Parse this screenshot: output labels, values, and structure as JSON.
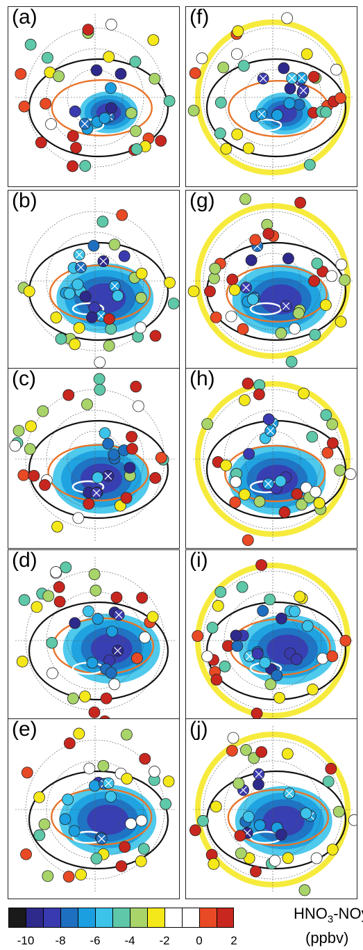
{
  "panels": [
    {
      "label": "(a)"
    },
    {
      "label": "(f)"
    },
    {
      "label": "(b)"
    },
    {
      "label": "(g)"
    },
    {
      "label": "(c)"
    },
    {
      "label": "(h)"
    },
    {
      "label": "(d)"
    },
    {
      "label": "(i)"
    },
    {
      "label": "(e)"
    },
    {
      "label": "(j)"
    }
  ],
  "colorbar": {
    "title_main": "HNO",
    "title_sub": "3",
    "title_rest": "-NOy*",
    "units": "(ppbv)",
    "ticks": [
      "-10",
      "-8",
      "-6",
      "-4",
      "-2",
      "0",
      "2"
    ],
    "colors": [
      "#1a1a1a",
      "#2e2a8c",
      "#3a3ab0",
      "#1f6fc0",
      "#1b9fe0",
      "#3cc3ea",
      "#5ec8a8",
      "#a8d46a",
      "#f4e81a",
      "#ffffff",
      "#ffffff",
      "#e84a25",
      "#c8271f"
    ]
  }
}
